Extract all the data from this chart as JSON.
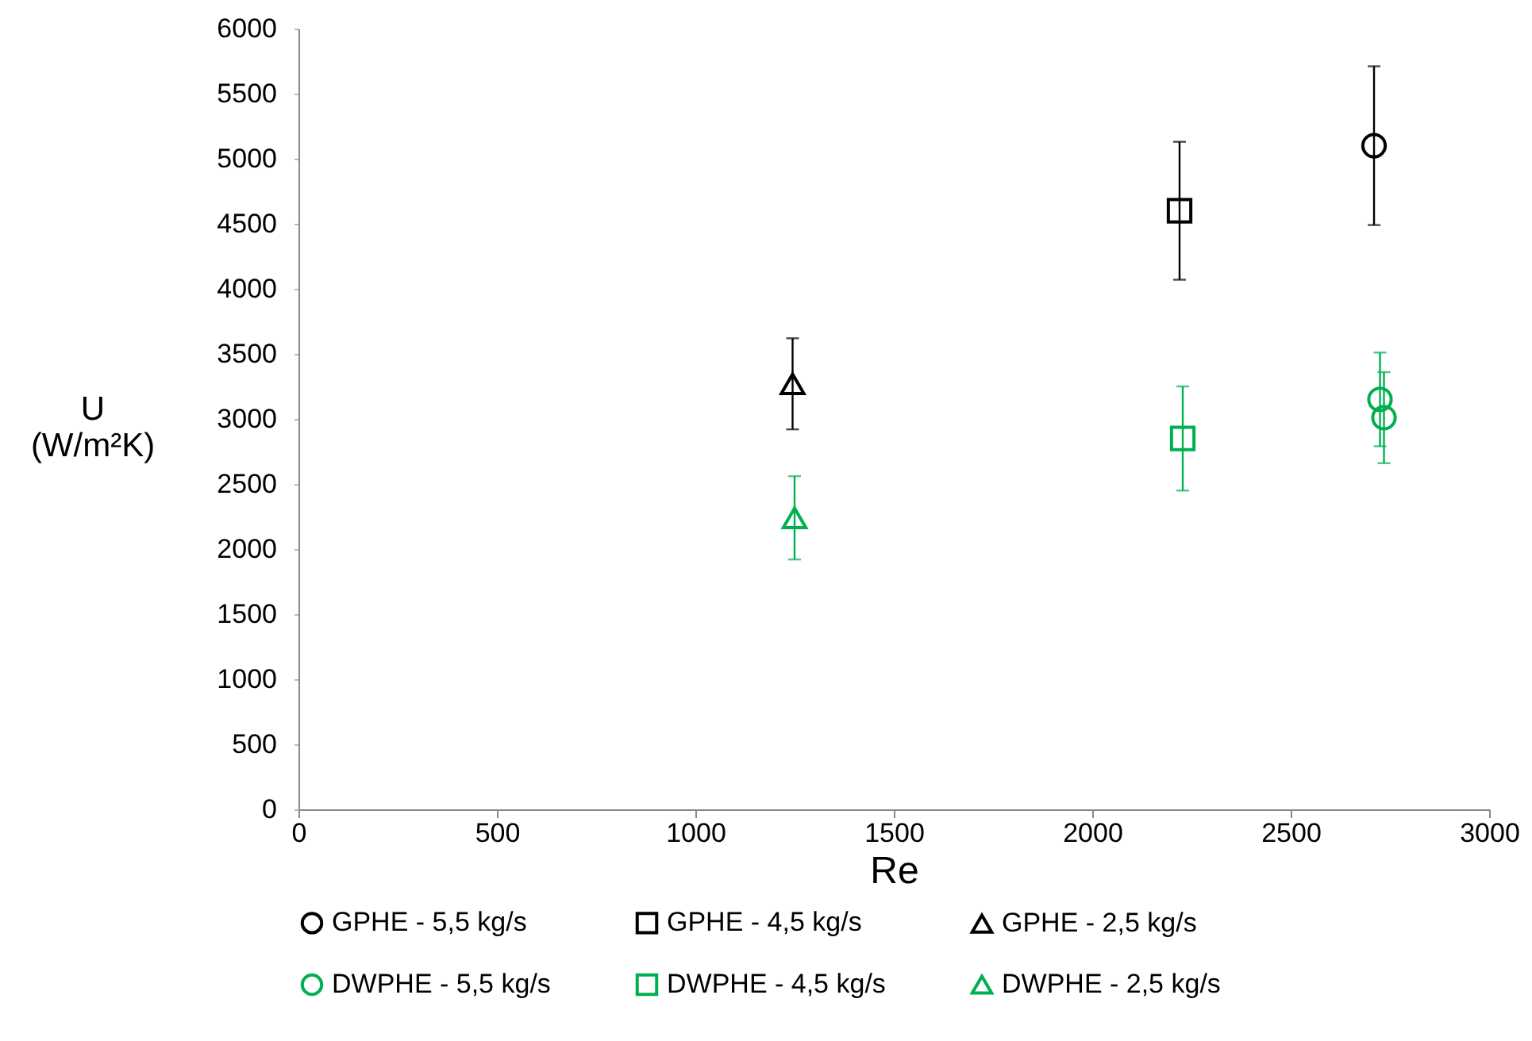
{
  "chart_data": {
    "type": "scatter",
    "xlabel": "Re",
    "ylabel": "U (W/m²K)",
    "xlim": [
      0,
      3000
    ],
    "xticks": [
      0,
      500,
      1000,
      1500,
      2000,
      2500,
      3000
    ],
    "ylim": [
      0,
      6000
    ],
    "yticks": [
      0,
      500,
      1000,
      1500,
      2000,
      2500,
      3000,
      3500,
      4000,
      4500,
      5000,
      5500,
      6000
    ],
    "grid": false,
    "legend": "bottom",
    "series": [
      {
        "name": "GPHE - 5,5 kg/s",
        "color": "#000000",
        "marker": "circle",
        "x": [
          2710
        ],
        "values": [
          5100
        ],
        "errors": [
          610
        ]
      },
      {
        "name": "GPHE - 4,5 kg/s",
        "color": "#000000",
        "marker": "square",
        "x": [
          2220
        ],
        "values": [
          4600
        ],
        "errors": [
          530
        ]
      },
      {
        "name": "GPHE - 2,5 kg/s",
        "color": "#000000",
        "marker": "triangle",
        "x": [
          1245
        ],
        "values": [
          3270
        ],
        "errors": [
          350
        ]
      },
      {
        "name": "DWPHE - 5,5 kg/s",
        "color": "#00b050",
        "marker": "circle",
        "x": [
          2725,
          2735
        ],
        "values": [
          3150,
          3010
        ],
        "errors": [
          360,
          350
        ]
      },
      {
        "name": "DWPHE - 4,5 kg/s",
        "color": "#00b050",
        "marker": "square",
        "x": [
          2228
        ],
        "values": [
          2850
        ],
        "errors": [
          400
        ]
      },
      {
        "name": "DWPHE - 2,5 kg/s",
        "color": "#00b050",
        "marker": "triangle",
        "x": [
          1250
        ],
        "values": [
          2240
        ],
        "errors": [
          320
        ]
      }
    ]
  }
}
